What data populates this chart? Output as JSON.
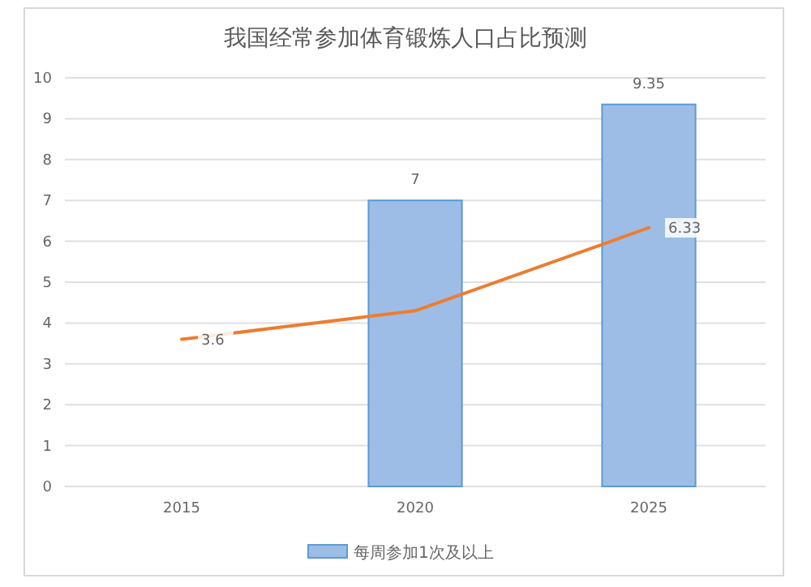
{
  "chart_data": {
    "type": "bar",
    "title": "我国经常参加体育锻炼人口占比预测",
    "categories": [
      "2015",
      "2020",
      "2025"
    ],
    "series": [
      {
        "name": "每周参加1次及以上",
        "color": "#9dbde6",
        "values": [
          null,
          7,
          9.35
        ],
        "value_labels": [
          null,
          "7",
          "9.35"
        ]
      },
      {
        "type": "line",
        "color": "#ed7d31",
        "values": [
          3.6,
          4.3,
          6.33
        ],
        "value_labels": [
          "3.6",
          null,
          "6.33"
        ]
      }
    ],
    "ylim": [
      0,
      10
    ],
    "yticks": [
      0,
      1,
      2,
      3,
      4,
      5,
      6,
      7,
      8,
      9,
      10
    ],
    "grid": "y",
    "legend": "bottom",
    "marker": "none"
  }
}
